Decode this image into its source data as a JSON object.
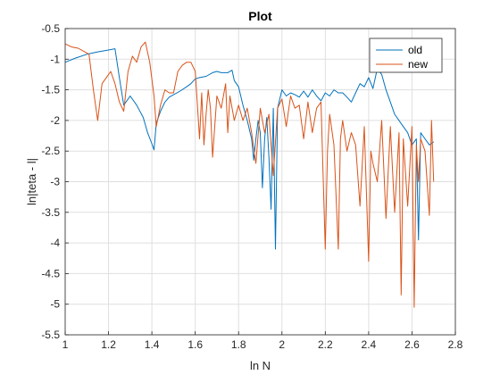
{
  "chart_data": {
    "type": "line",
    "title": "Plot",
    "xlabel": "ln N",
    "ylabel": "ln|teta - l|",
    "xlim": [
      1,
      2.8
    ],
    "ylim": [
      -5.5,
      -0.5
    ],
    "xticks": [
      "1",
      "1.2",
      "1.4",
      "1.6",
      "1.8",
      "2",
      "2.2",
      "2.4",
      "2.6",
      "2.8"
    ],
    "yticks": [
      "-0.5",
      "-1",
      "-1.5",
      "-2",
      "-2.5",
      "-3",
      "-3.5",
      "-4",
      "-4.5",
      "-5",
      "-5.5"
    ],
    "grid": true,
    "legend_position": "top-right",
    "series": [
      {
        "name": "old",
        "color": "#0072BD",
        "x": [
          1.0,
          1.05,
          1.1,
          1.15,
          1.2,
          1.23,
          1.25,
          1.27,
          1.3,
          1.33,
          1.36,
          1.38,
          1.4,
          1.41,
          1.42,
          1.44,
          1.46,
          1.48,
          1.5,
          1.53,
          1.56,
          1.58,
          1.6,
          1.62,
          1.65,
          1.68,
          1.7,
          1.72,
          1.75,
          1.77,
          1.78,
          1.8,
          1.82,
          1.84,
          1.86,
          1.87,
          1.88,
          1.89,
          1.9,
          1.91,
          1.92,
          1.93,
          1.94,
          1.95,
          1.96,
          1.97,
          1.98,
          2.0,
          2.02,
          2.04,
          2.06,
          2.08,
          2.1,
          2.12,
          2.14,
          2.16,
          2.18,
          2.2,
          2.22,
          2.24,
          2.26,
          2.28,
          2.3,
          2.32,
          2.34,
          2.36,
          2.38,
          2.4,
          2.42,
          2.44,
          2.46,
          2.48,
          2.5,
          2.52,
          2.54,
          2.56,
          2.58,
          2.6,
          2.62,
          2.63,
          2.64,
          2.66,
          2.68,
          2.7
        ],
        "y": [
          -1.05,
          -0.98,
          -0.92,
          -0.88,
          -0.85,
          -0.83,
          -1.3,
          -1.75,
          -1.6,
          -1.75,
          -1.95,
          -2.2,
          -2.38,
          -2.48,
          -2.05,
          -1.85,
          -1.7,
          -1.62,
          -1.58,
          -1.52,
          -1.45,
          -1.4,
          -1.32,
          -1.3,
          -1.28,
          -1.22,
          -1.2,
          -1.22,
          -1.22,
          -1.18,
          -1.35,
          -1.45,
          -1.75,
          -2.0,
          -2.3,
          -2.65,
          -2.3,
          -2.0,
          -2.2,
          -3.1,
          -2.3,
          -1.95,
          -2.6,
          -3.45,
          -1.8,
          -4.1,
          -1.8,
          -1.5,
          -1.6,
          -1.55,
          -1.58,
          -1.62,
          -1.52,
          -1.62,
          -1.5,
          -1.6,
          -1.68,
          -1.55,
          -1.6,
          -1.5,
          -1.55,
          -1.55,
          -1.62,
          -1.7,
          -1.55,
          -1.4,
          -1.45,
          -1.3,
          -1.48,
          -1.15,
          -1.25,
          -1.5,
          -1.7,
          -1.9,
          -2.0,
          -2.1,
          -2.2,
          -2.4,
          -2.3,
          -3.95,
          -2.2,
          -2.3,
          -2.4,
          -2.35
        ]
      },
      {
        "name": "new",
        "color": "#D95319",
        "x": [
          1.0,
          1.03,
          1.06,
          1.09,
          1.11,
          1.13,
          1.15,
          1.17,
          1.19,
          1.21,
          1.23,
          1.25,
          1.27,
          1.29,
          1.31,
          1.33,
          1.35,
          1.37,
          1.39,
          1.41,
          1.42,
          1.44,
          1.46,
          1.48,
          1.5,
          1.52,
          1.54,
          1.56,
          1.58,
          1.6,
          1.62,
          1.63,
          1.64,
          1.65,
          1.66,
          1.67,
          1.68,
          1.7,
          1.72,
          1.74,
          1.75,
          1.76,
          1.78,
          1.8,
          1.82,
          1.84,
          1.86,
          1.88,
          1.9,
          1.92,
          1.94,
          1.96,
          1.98,
          2.0,
          2.02,
          2.04,
          2.06,
          2.08,
          2.1,
          2.12,
          2.14,
          2.16,
          2.18,
          2.2,
          2.21,
          2.22,
          2.24,
          2.26,
          2.27,
          2.28,
          2.3,
          2.32,
          2.34,
          2.36,
          2.38,
          2.4,
          2.41,
          2.42,
          2.44,
          2.46,
          2.48,
          2.5,
          2.52,
          2.54,
          2.55,
          2.56,
          2.58,
          2.6,
          2.61,
          2.62,
          2.63,
          2.64,
          2.66,
          2.68,
          2.69,
          2.7
        ],
        "y": [
          -0.75,
          -0.8,
          -0.82,
          -0.88,
          -0.92,
          -1.5,
          -2.0,
          -1.4,
          -1.3,
          -1.2,
          -1.4,
          -1.7,
          -1.85,
          -1.2,
          -0.95,
          -1.05,
          -0.8,
          -0.72,
          -1.05,
          -1.6,
          -2.1,
          -1.75,
          -1.5,
          -1.55,
          -1.55,
          -1.2,
          -1.1,
          -1.05,
          -1.05,
          -1.2,
          -2.3,
          -1.55,
          -2.4,
          -1.9,
          -1.5,
          -1.8,
          -2.6,
          -1.6,
          -1.8,
          -1.4,
          -2.2,
          -1.6,
          -2.0,
          -1.75,
          -2.0,
          -1.8,
          -2.2,
          -2.7,
          -1.8,
          -2.2,
          -1.9,
          -2.9,
          -1.8,
          -1.65,
          -2.1,
          -1.6,
          -1.8,
          -1.75,
          -2.3,
          -1.7,
          -2.2,
          -1.8,
          -1.7,
          -4.1,
          -2.5,
          -1.9,
          -2.4,
          -4.1,
          -2.3,
          -2.0,
          -2.5,
          -2.2,
          -2.4,
          -3.4,
          -2.1,
          -4.3,
          -2.5,
          -2.7,
          -3.0,
          -2.0,
          -3.6,
          -2.1,
          -3.5,
          -2.2,
          -4.85,
          -2.3,
          -3.4,
          -2.1,
          -5.05,
          -2.4,
          -3.0,
          -2.3,
          -2.5,
          -3.55,
          -2.0,
          -3.0
        ]
      }
    ]
  }
}
